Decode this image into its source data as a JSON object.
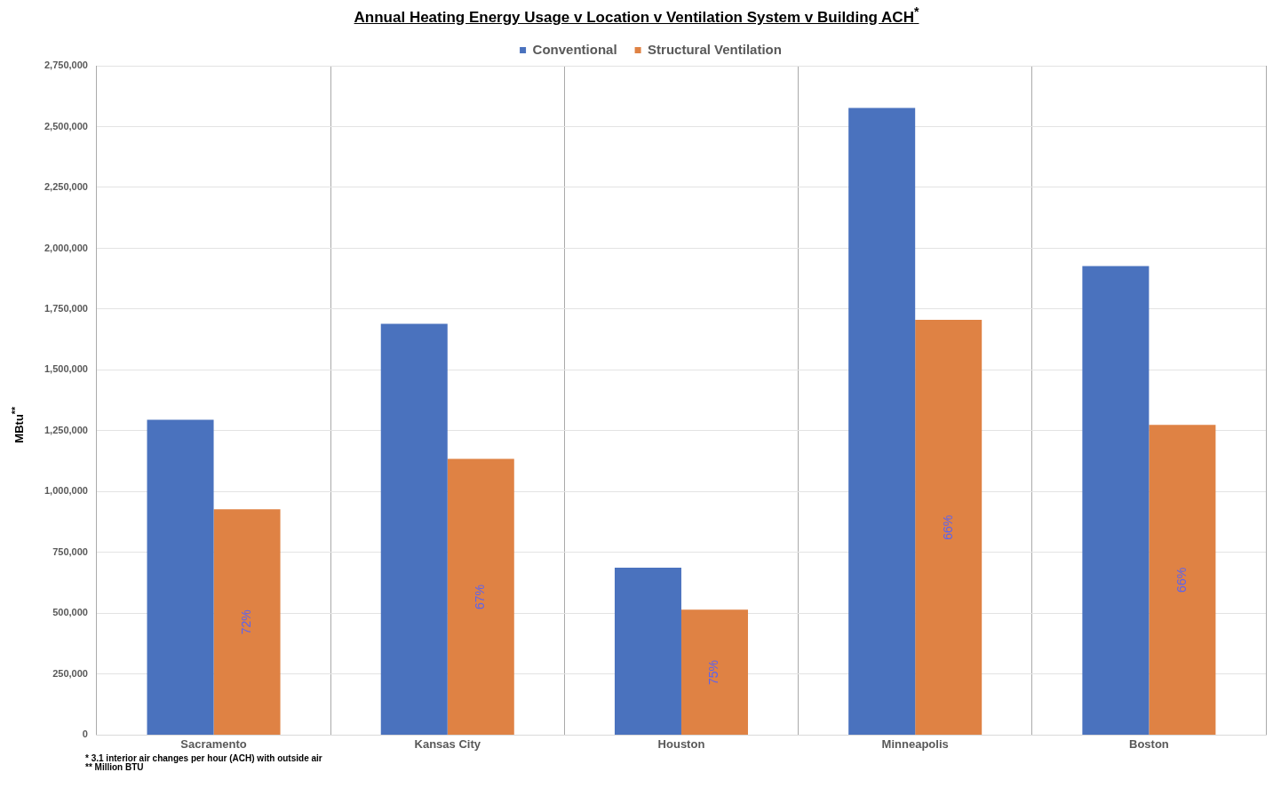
{
  "chart_data": {
    "type": "bar",
    "title": "Annual Heating Energy Usage v Location v Ventilation System v Building ACH$^{*}$",
    "ylabel": "MBtu$^{**}$",
    "categories": [
      "Sacramento",
      "Kansas City",
      "Houston",
      "Minneapolis",
      "Boston"
    ],
    "series": [
      {
        "name": "Conventional",
        "color": "#4a72be",
        "values": [
          1295000,
          1690000,
          688000,
          2577000,
          1927000
        ]
      },
      {
        "name": "Structural Ventilation",
        "color": "#df8244",
        "values": [
          928000,
          1135000,
          515000,
          1706000,
          1274000
        ]
      }
    ],
    "ylim": [
      0,
      2750000
    ],
    "yticks": [
      0,
      {
        "value": 250000,
        "label": "250,000"
      },
      {
        "value": 500000,
        "label": "500,000"
      },
      {
        "value": 750000,
        "label": "750,000"
      },
      {
        "value": 1000000,
        "label": "1,000,000"
      },
      {
        "value": 1250000,
        "label": "1,250,000"
      },
      {
        "value": 1500000,
        "label": "1,500,000"
      },
      {
        "value": 1750000,
        "label": "1,750,000"
      },
      {
        "value": 2000000,
        "label": "2,000,000"
      },
      {
        "value": 2250000,
        "label": "2,250,000"
      },
      {
        "value": 2500000,
        "label": "2,500,000"
      },
      {
        "value": 2750000,
        "label": "2,750,000"
      }
    ],
    "grid": true,
    "legend": "top",
    "annotations": [
      "*  3.1 interior air changes per hour (ACH) with outside air",
      "**  Million BTU",
      {
        "text": "72%",
        "x": "Sacramento",
        "y": 464000
      },
      {
        "text": "67%",
        "x": "Kansas City",
        "y": 567000
      },
      {
        "text": "75%",
        "x": "Houston",
        "y": 257000
      },
      {
        "text": "66%",
        "x": "Minneapolis",
        "y": 853000
      },
      {
        "text": "66%",
        "x": "Boston",
        "y": 637000
      }
    ]
  }
}
